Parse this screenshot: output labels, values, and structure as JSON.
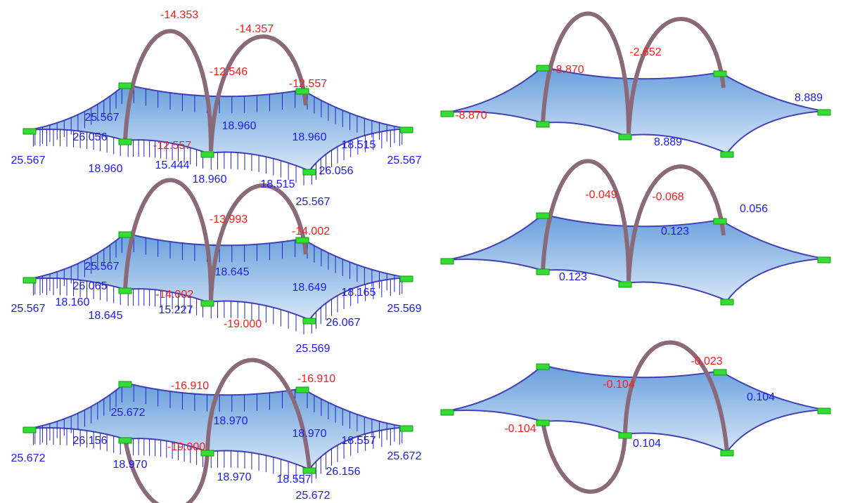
{
  "panels": [
    {
      "labels": [
        "-14.353",
        "-14.357",
        "-12.546",
        "-12.557",
        "-12.557",
        "25.567",
        "26.056",
        "18.960",
        "18.960",
        "18.515",
        "25.567",
        "18.960",
        "15.444",
        "18.960",
        "18.515",
        "26.056",
        "25.567"
      ]
    },
    {
      "labels": [
        "25.567",
        "-13.993",
        "-14.002",
        "-14.002",
        "-19.000",
        "25.567",
        "26.065",
        "18.645",
        "18.649",
        "18.165",
        "25.567",
        "18.160",
        "18.645",
        "15.227",
        "26.067",
        "25.569"
      ]
    },
    {
      "labels": [
        "25.569",
        "-16.910",
        "-16.910",
        "-19.000",
        "25.672",
        "18.970",
        "18.970",
        "18.557",
        "26.156",
        "25.672",
        "18.970",
        "18.970",
        "18.557",
        "26.156",
        "25.672",
        "25.672"
      ]
    },
    {
      "labels": [
        "-2.652",
        "-8.870",
        "-8.870",
        "8.889",
        "8.889"
      ]
    },
    {
      "labels": [
        "-0.049",
        "-0.068",
        "0.056",
        "0.123",
        "0.123"
      ]
    },
    {
      "labels": [
        "-0.023",
        "-0.104",
        "-0.104",
        "0.104",
        "0.104"
      ]
    }
  ]
}
